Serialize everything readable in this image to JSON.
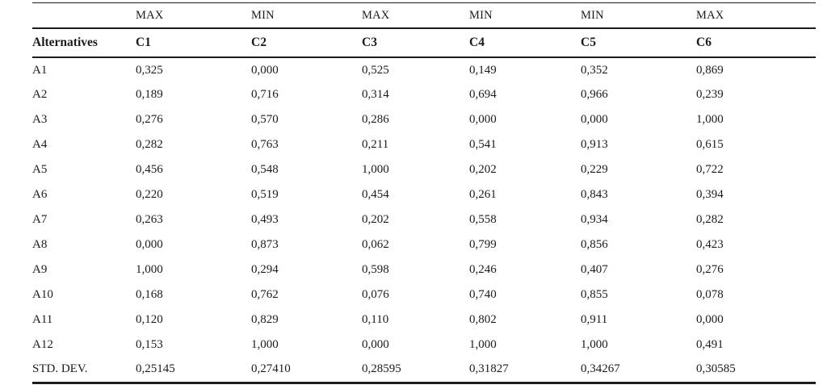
{
  "page": {
    "background_color": "#ffffff",
    "text_color": "#1b1b1b",
    "rule_color": "#1c1c1c"
  },
  "table": {
    "criteria_directions": [
      "MAX",
      "MIN",
      "MAX",
      "MIN",
      "MIN",
      "MAX"
    ],
    "header": {
      "row_label": "Alternatives",
      "columns": [
        "C1",
        "C2",
        "C3",
        "C4",
        "C5",
        "C6"
      ]
    },
    "rows": [
      {
        "label": "A1",
        "values": [
          "0,325",
          "0,000",
          "0,525",
          "0,149",
          "0,352",
          "0,869"
        ]
      },
      {
        "label": "A2",
        "values": [
          "0,189",
          "0,716",
          "0,314",
          "0,694",
          "0,966",
          "0,239"
        ]
      },
      {
        "label": "A3",
        "values": [
          "0,276",
          "0,570",
          "0,286",
          "0,000",
          "0,000",
          "1,000"
        ]
      },
      {
        "label": "A4",
        "values": [
          "0,282",
          "0,763",
          "0,211",
          "0,541",
          "0,913",
          "0,615"
        ]
      },
      {
        "label": "A5",
        "values": [
          "0,456",
          "0,548",
          "1,000",
          "0,202",
          "0,229",
          "0,722"
        ]
      },
      {
        "label": "A6",
        "values": [
          "0,220",
          "0,519",
          "0,454",
          "0,261",
          "0,843",
          "0,394"
        ]
      },
      {
        "label": "A7",
        "values": [
          "0,263",
          "0,493",
          "0,202",
          "0,558",
          "0,934",
          "0,282"
        ]
      },
      {
        "label": "A8",
        "values": [
          "0,000",
          "0,873",
          "0,062",
          "0,799",
          "0,856",
          "0,423"
        ]
      },
      {
        "label": "A9",
        "values": [
          "1,000",
          "0,294",
          "0,598",
          "0,246",
          "0,407",
          "0,276"
        ]
      },
      {
        "label": "A10",
        "values": [
          "0,168",
          "0,762",
          "0,076",
          "0,740",
          "0,855",
          "0,078"
        ]
      },
      {
        "label": "A11",
        "values": [
          "0,120",
          "0,829",
          "0,110",
          "0,802",
          "0,911",
          "0,000"
        ]
      },
      {
        "label": "A12",
        "values": [
          "0,153",
          "1,000",
          "0,000",
          "1,000",
          "1,000",
          "0,491"
        ]
      },
      {
        "label": "STD. DEV.",
        "values": [
          "0,25145",
          "0,27410",
          "0,28595",
          "0,31827",
          "0,34267",
          "0,30585"
        ]
      }
    ]
  }
}
